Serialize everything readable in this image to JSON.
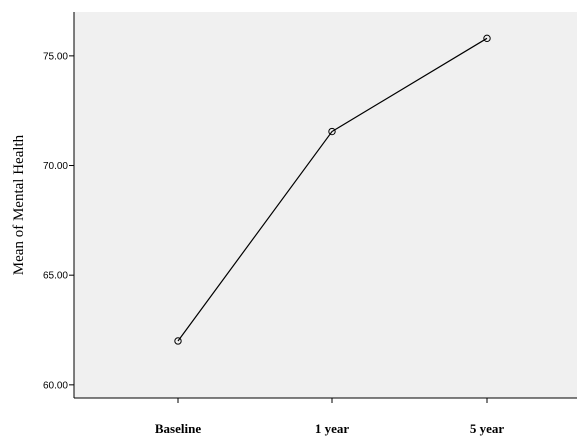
{
  "chart_data": {
    "type": "line",
    "categories": [
      "Baseline",
      "1 year",
      "5 year"
    ],
    "series": [
      {
        "values": [
          62.0,
          71.55,
          75.8
        ]
      }
    ],
    "ylabel": "Mean of Mental Health",
    "xlabel": "",
    "ylim": [
      59.4,
      77.0
    ],
    "yticks": [
      "60.00",
      "65.00",
      "70.00",
      "75.00"
    ],
    "ytick_values": [
      60,
      65,
      70,
      75
    ],
    "grid": false,
    "markers": "open-circle",
    "colors": {
      "plot_background": "#f0f0f0",
      "line": "#000000",
      "axis": "#000000"
    }
  }
}
